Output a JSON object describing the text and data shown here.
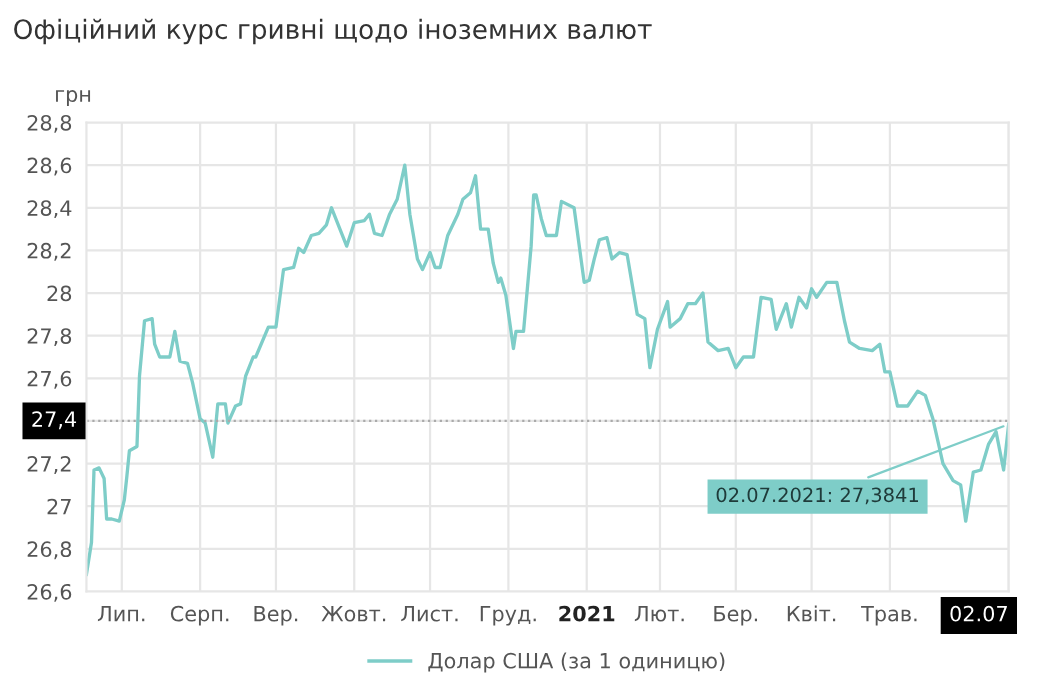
{
  "chart_data": {
    "type": "line",
    "title": "Офіційний курс гривні щодо іноземних валют",
    "ylabel": "грн",
    "series": [
      {
        "name": "Долар США (за 1 одиницю)",
        "color": "#7ecdc8",
        "x": [
          "2020-07-02",
          "2020-07-04",
          "2020-07-05",
          "2020-07-07",
          "2020-07-09",
          "2020-07-10",
          "2020-07-12",
          "2020-07-15",
          "2020-07-17",
          "2020-07-18",
          "2020-07-19",
          "2020-07-22",
          "2020-07-23",
          "2020-07-25",
          "2020-07-28",
          "2020-07-29",
          "2020-07-31",
          "2020-08-04",
          "2020-08-06",
          "2020-08-08",
          "2020-08-11",
          "2020-08-13",
          "2020-08-16",
          "2020-08-18",
          "2020-08-21",
          "2020-08-23",
          "2020-08-26",
          "2020-08-27",
          "2020-08-30",
          "2020-09-01",
          "2020-09-03",
          "2020-09-06",
          "2020-09-07",
          "2020-09-12",
          "2020-09-15",
          "2020-09-18",
          "2020-09-22",
          "2020-09-24",
          "2020-09-26",
          "2020-09-29",
          "2020-10-02",
          "2020-10-05",
          "2020-10-07",
          "2020-10-11",
          "2020-10-13",
          "2020-10-16",
          "2020-10-20",
          "2020-10-22",
          "2020-10-24",
          "2020-10-27",
          "2020-10-30",
          "2020-11-02",
          "2020-11-05",
          "2020-11-07",
          "2020-11-10",
          "2020-11-12",
          "2020-11-15",
          "2020-11-17",
          "2020-11-19",
          "2020-11-22",
          "2020-11-26",
          "2020-11-28",
          "2020-12-01",
          "2020-12-03",
          "2020-12-05",
          "2020-12-08",
          "2020-12-10",
          "2020-12-12",
          "2020-12-13",
          "2020-12-15",
          "2020-12-18",
          "2020-12-19",
          "2020-12-22",
          "2020-12-25",
          "2020-12-26",
          "2020-12-27",
          "2020-12-29",
          "2020-12-31",
          "2021-01-04",
          "2021-01-06",
          "2021-01-11",
          "2021-01-15",
          "2021-01-17",
          "2021-01-19",
          "2021-01-21",
          "2021-01-24",
          "2021-01-26",
          "2021-01-29",
          "2021-02-01",
          "2021-02-05",
          "2021-02-08",
          "2021-02-10",
          "2021-02-13",
          "2021-02-17",
          "2021-02-18",
          "2021-02-22",
          "2021-02-25",
          "2021-02-28",
          "2021-03-03",
          "2021-03-05",
          "2021-03-09",
          "2021-03-13",
          "2021-03-16",
          "2021-03-19",
          "2021-03-23",
          "2021-03-26",
          "2021-03-30",
          "2021-04-01",
          "2021-04-05",
          "2021-04-07",
          "2021-04-10",
          "2021-04-13",
          "2021-04-15",
          "2021-04-17",
          "2021-04-21",
          "2021-04-25",
          "2021-04-28",
          "2021-04-30",
          "2021-05-04",
          "2021-05-09",
          "2021-05-12",
          "2021-05-14",
          "2021-05-16",
          "2021-05-19",
          "2021-05-23",
          "2021-05-27",
          "2021-05-30",
          "2021-06-02",
          "2021-06-06",
          "2021-06-10",
          "2021-06-13",
          "2021-06-15",
          "2021-06-18",
          "2021-06-21",
          "2021-06-24",
          "2021-06-27",
          "2021-06-30",
          "2021-07-02"
        ],
        "values": [
          26.68,
          26.83,
          27.17,
          27.18,
          27.13,
          26.94,
          26.94,
          26.93,
          27.03,
          27.14,
          27.26,
          27.28,
          27.61,
          27.87,
          27.88,
          27.76,
          27.7,
          27.7,
          27.82,
          27.68,
          27.67,
          27.58,
          27.41,
          27.39,
          27.23,
          27.48,
          27.48,
          27.39,
          27.47,
          27.48,
          27.61,
          27.7,
          27.7,
          27.84,
          27.84,
          28.11,
          28.12,
          28.21,
          28.19,
          28.27,
          28.28,
          28.32,
          28.4,
          28.28,
          28.22,
          28.33,
          28.34,
          28.37,
          28.28,
          28.27,
          28.37,
          28.44,
          28.6,
          28.37,
          28.16,
          28.11,
          28.19,
          28.12,
          28.12,
          28.27,
          28.37,
          28.44,
          28.47,
          28.55,
          28.3,
          28.3,
          28.14,
          28.05,
          28.07,
          27.99,
          27.74,
          27.82,
          27.82,
          28.22,
          28.46,
          28.46,
          28.35,
          28.27,
          28.27,
          28.43,
          28.4,
          28.05,
          28.06,
          28.16,
          28.25,
          28.26,
          28.16,
          28.19,
          28.18,
          27.9,
          27.88,
          27.65,
          27.83,
          27.96,
          27.84,
          27.88,
          27.95,
          27.95,
          28.0,
          27.77,
          27.73,
          27.74,
          27.65,
          27.7,
          27.7,
          27.98,
          27.97,
          27.83,
          27.95,
          27.84,
          27.98,
          27.93,
          28.02,
          27.98,
          28.05,
          28.05,
          27.87,
          27.77,
          27.74,
          27.73,
          27.76,
          27.63,
          27.63,
          27.47,
          27.47,
          27.54,
          27.52,
          27.41,
          27.2,
          27.12,
          27.1,
          26.93,
          27.16,
          27.17,
          27.29,
          27.35,
          27.17,
          27.3841
        ]
      }
    ],
    "xlim": [
      "2020-07-02",
      "2021-07-02"
    ],
    "xticks": [
      {
        "value": "2020-07-16",
        "label": "Лип."
      },
      {
        "value": "2020-08-16",
        "label": "Серп."
      },
      {
        "value": "2020-09-15",
        "label": "Вер."
      },
      {
        "value": "2020-10-16",
        "label": "Жовт."
      },
      {
        "value": "2020-11-15",
        "label": "Лист."
      },
      {
        "value": "2020-12-16",
        "label": "Груд."
      },
      {
        "value": "2021-01-16",
        "label": "2021"
      },
      {
        "value": "2021-02-14",
        "label": "Лют."
      },
      {
        "value": "2021-03-16",
        "label": "Бер."
      },
      {
        "value": "2021-04-15",
        "label": "Квіт."
      },
      {
        "value": "2021-05-16",
        "label": "Трав."
      },
      {
        "value": "2021-07-02",
        "label": "02.07"
      }
    ],
    "ylim": [
      26.6,
      28.8
    ],
    "yticks": [
      {
        "value": 26.6,
        "label": "26,6"
      },
      {
        "value": 26.8,
        "label": "26,8"
      },
      27,
      {
        "value": 27.2,
        "label": "27,2"
      },
      {
        "value": 27.4,
        "label": null
      },
      {
        "value": 27.6,
        "label": "27,6"
      },
      {
        "value": 27.8,
        "label": "27,8"
      },
      28,
      {
        "value": 28.2,
        "label": "28,2"
      },
      {
        "value": 28.4,
        "label": "28,4"
      },
      {
        "value": 28.6,
        "label": "28,6"
      },
      {
        "value": 28.8,
        "label": "28,8"
      }
    ],
    "ref_lines": [
      {
        "axis": "y",
        "value": 27.4,
        "label": "27,4",
        "line_style": "dotted",
        "color": "#aaaaaa"
      }
    ],
    "annotations": [
      {
        "text": "02.07.2021: 27,3841",
        "x": "2021-07-02",
        "y": 27.3841
      }
    ],
    "grid": true,
    "legend": "bottom",
    "line_style": "solid",
    "marker": "none"
  }
}
